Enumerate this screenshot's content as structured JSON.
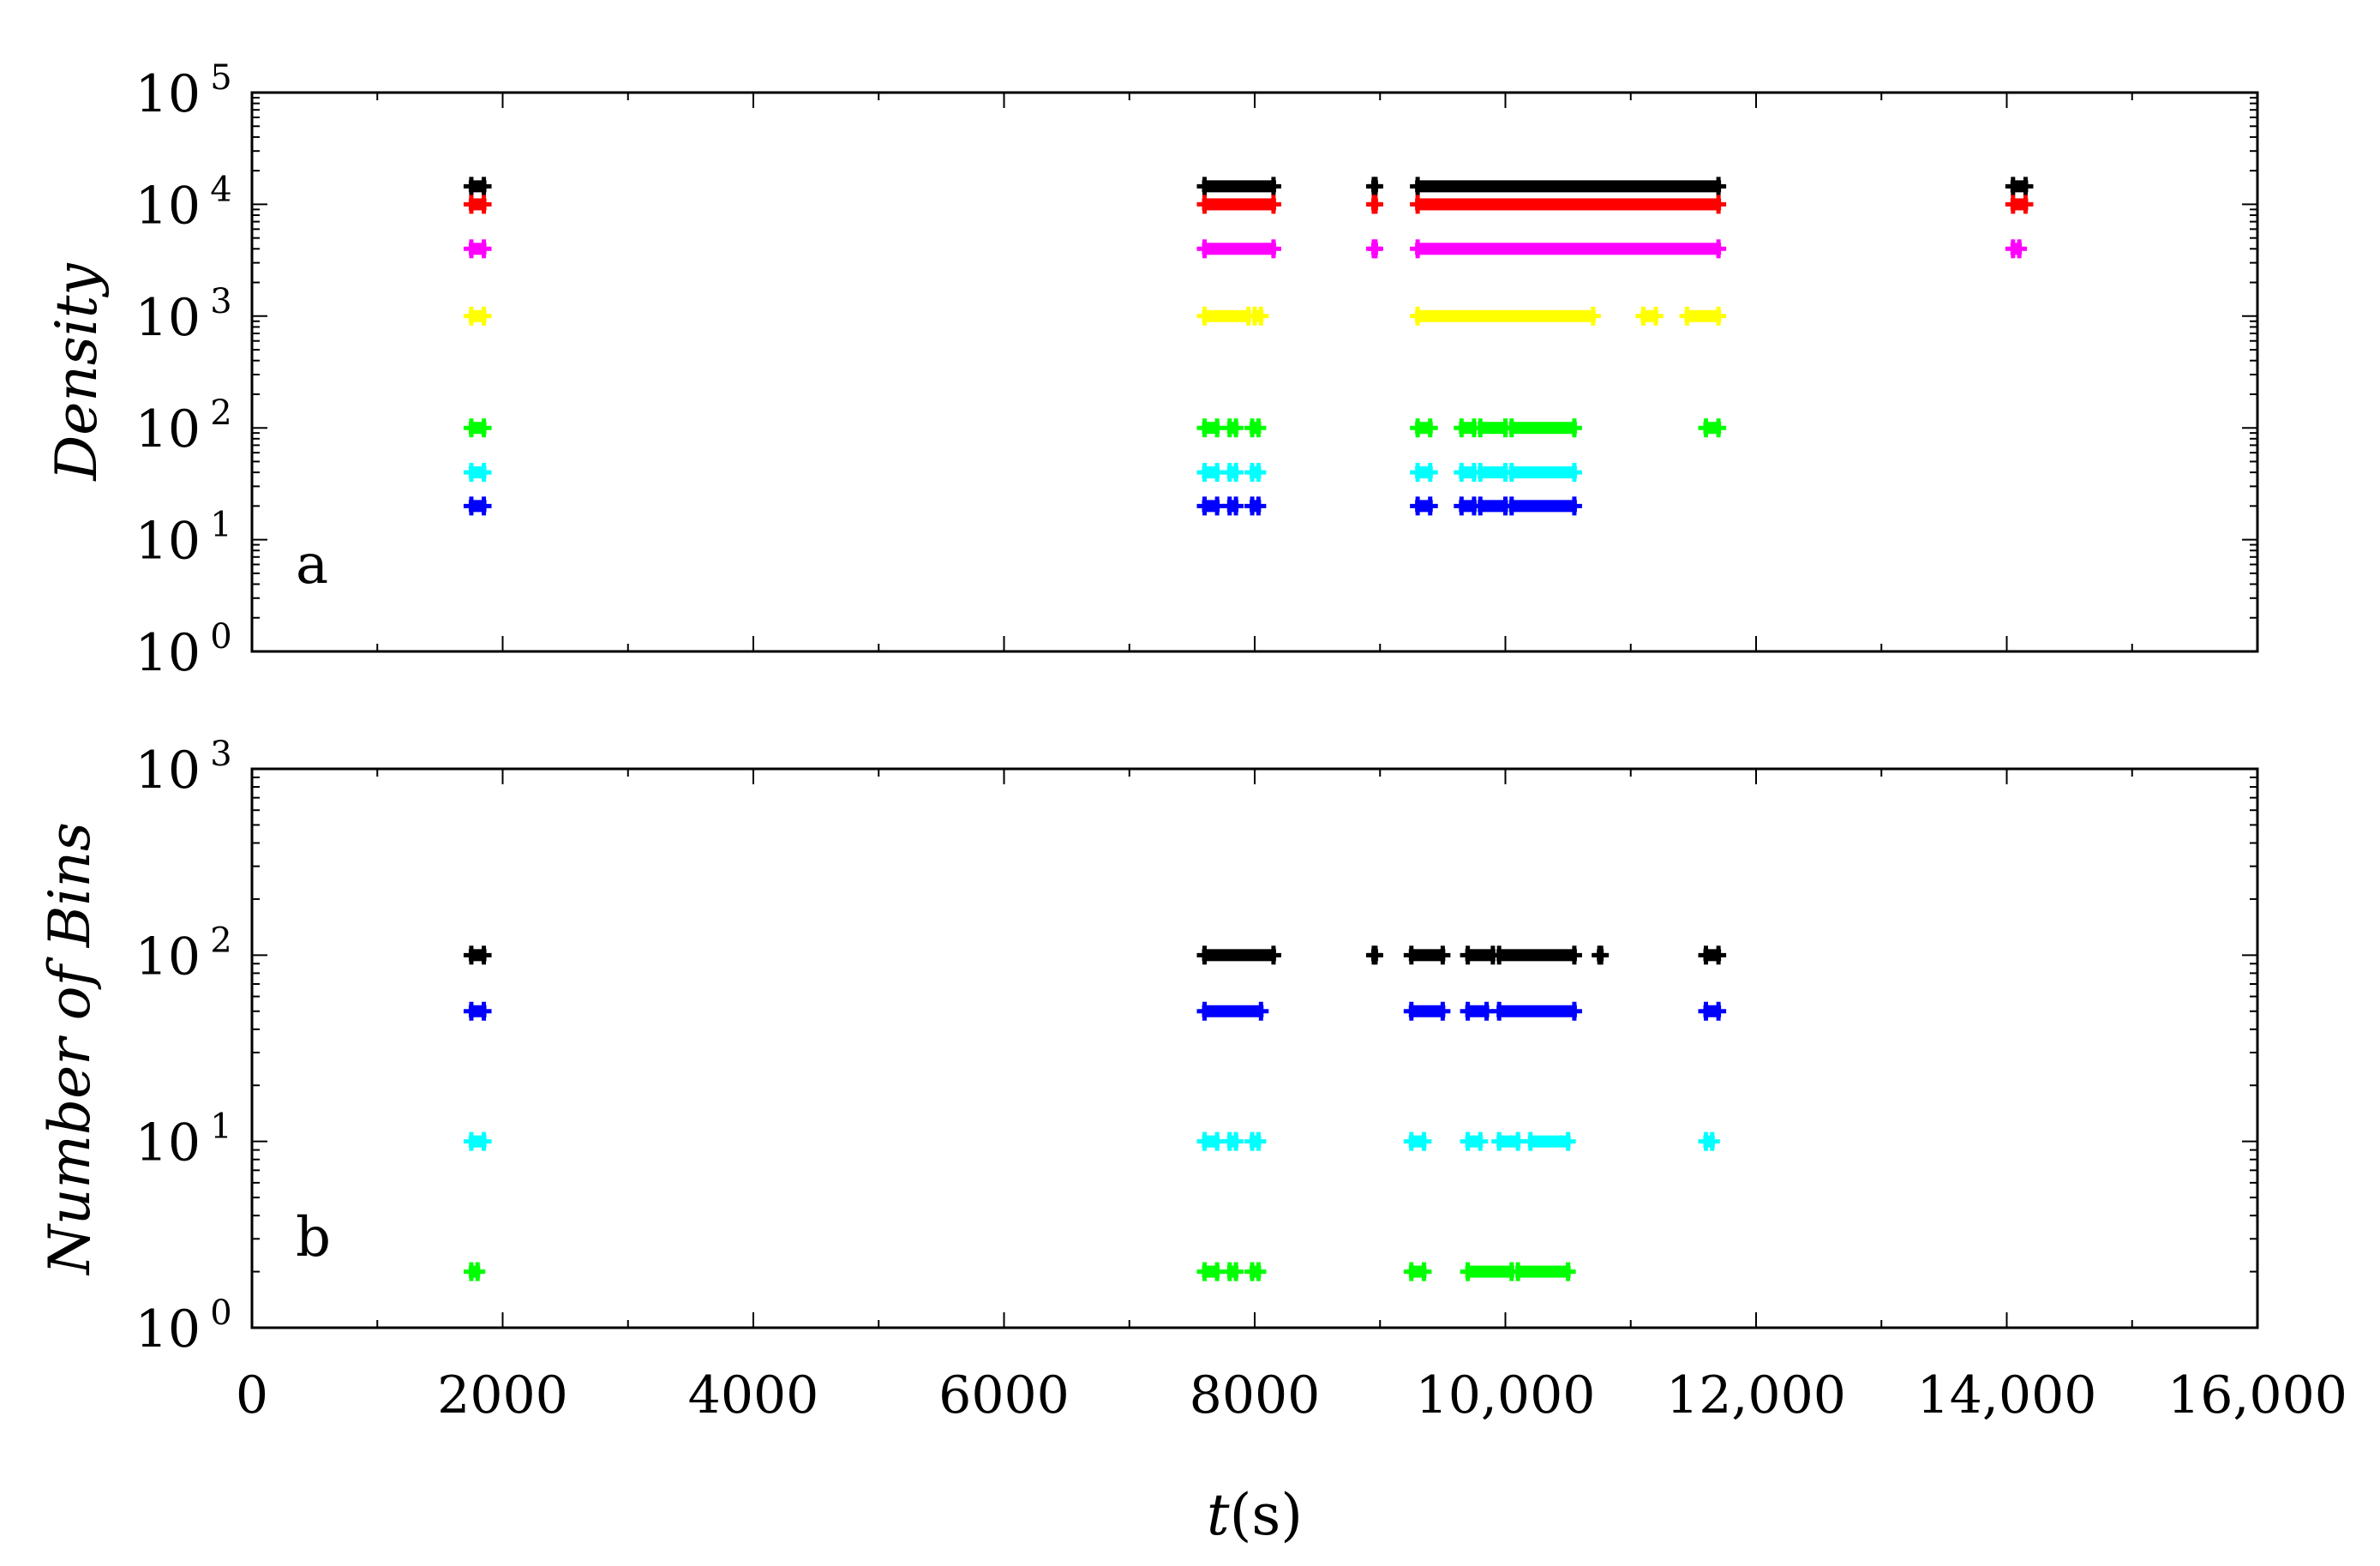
{
  "colors": {
    "black": "#000000",
    "red": "#ff0000",
    "magenta": "#ff00ff",
    "yellow": "#ffff00",
    "green": "#00ff00",
    "cyan": "#00ffff",
    "blue": "#0000ff"
  },
  "x_axis": {
    "label_italic": "t",
    "label_rest": "(s)",
    "range": [
      0,
      16000
    ],
    "ticks": [
      0,
      2000,
      4000,
      6000,
      8000,
      10000,
      12000,
      14000,
      16000
    ],
    "tick_labels": [
      "0",
      "2000",
      "4000",
      "6000",
      "8000",
      "10,000",
      "12,000",
      "14,000",
      "16,000"
    ]
  },
  "chart_data": [
    {
      "type": "scatter",
      "panel_label": "a",
      "ylabel": "Density",
      "yscale": "log",
      "ylim": [
        1,
        100000
      ],
      "y_tick_exponents": [
        0,
        1,
        2,
        3,
        4,
        5
      ],
      "y_tick_base": "10",
      "grid": false,
      "series": [
        {
          "color": "black",
          "y": 14500,
          "segments": [
            [
              1750,
              1850
            ],
            [
              7600,
              8150
            ],
            [
              8950,
              8960
            ],
            [
              9300,
              11700
            ],
            [
              14050,
              14150
            ]
          ]
        },
        {
          "color": "red",
          "y": 10000,
          "segments": [
            [
              1750,
              1850
            ],
            [
              7600,
              8150
            ],
            [
              8950,
              8960
            ],
            [
              9300,
              11700
            ],
            [
              14050,
              14150
            ]
          ]
        },
        {
          "color": "magenta",
          "y": 4000,
          "segments": [
            [
              1750,
              1850
            ],
            [
              7600,
              8150
            ],
            [
              8950,
              8960
            ],
            [
              9300,
              11700
            ],
            [
              14050,
              14100
            ]
          ]
        },
        {
          "color": "yellow",
          "y": 1000,
          "segments": [
            [
              1750,
              1850
            ],
            [
              7600,
              7950
            ],
            [
              8000,
              8050
            ],
            [
              9300,
              10700
            ],
            [
              11100,
              11200
            ],
            [
              11450,
              11700
            ]
          ]
        },
        {
          "color": "green",
          "y": 100,
          "segments": [
            [
              1750,
              1850
            ],
            [
              7600,
              7700
            ],
            [
              7800,
              7850
            ],
            [
              7980,
              8030
            ],
            [
              9300,
              9400
            ],
            [
              9650,
              9750
            ],
            [
              9800,
              10000
            ],
            [
              10050,
              10550
            ],
            [
              11600,
              11700
            ]
          ]
        },
        {
          "color": "cyan",
          "y": 40,
          "segments": [
            [
              1750,
              1850
            ],
            [
              7600,
              7700
            ],
            [
              7800,
              7850
            ],
            [
              7980,
              8030
            ],
            [
              9300,
              9400
            ],
            [
              9650,
              9750
            ],
            [
              9800,
              10000
            ],
            [
              10050,
              10550
            ]
          ]
        },
        {
          "color": "blue",
          "y": 20,
          "segments": [
            [
              1750,
              1850
            ],
            [
              7600,
              7700
            ],
            [
              7800,
              7850
            ],
            [
              7980,
              8030
            ],
            [
              9300,
              9400
            ],
            [
              9650,
              9750
            ],
            [
              9800,
              10000
            ],
            [
              10050,
              10550
            ]
          ]
        }
      ]
    },
    {
      "type": "scatter",
      "panel_label": "b",
      "ylabel": "Number of Bins",
      "yscale": "log",
      "ylim": [
        1,
        1000
      ],
      "y_tick_exponents": [
        0,
        1,
        2,
        3
      ],
      "y_tick_base": "10",
      "grid": false,
      "series": [
        {
          "color": "black",
          "y": 100,
          "segments": [
            [
              1750,
              1850
            ],
            [
              7600,
              8150
            ],
            [
              8950,
              8960
            ],
            [
              9250,
              9500
            ],
            [
              9700,
              9900
            ],
            [
              9950,
              10550
            ],
            [
              10750,
              10760
            ],
            [
              11600,
              11700
            ]
          ]
        },
        {
          "color": "blue",
          "y": 50,
          "segments": [
            [
              1750,
              1850
            ],
            [
              7600,
              8050
            ],
            [
              9250,
              9500
            ],
            [
              9700,
              9850
            ],
            [
              9950,
              10550
            ],
            [
              11600,
              11700
            ]
          ]
        },
        {
          "color": "cyan",
          "y": 10,
          "segments": [
            [
              1750,
              1850
            ],
            [
              7600,
              7700
            ],
            [
              7800,
              7850
            ],
            [
              7980,
              8030
            ],
            [
              9250,
              9350
            ],
            [
              9700,
              9800
            ],
            [
              9950,
              10100
            ],
            [
              10200,
              10500
            ],
            [
              11600,
              11650
            ]
          ]
        },
        {
          "color": "green",
          "y": 2,
          "segments": [
            [
              1750,
              1800
            ],
            [
              7600,
              7700
            ],
            [
              7800,
              7850
            ],
            [
              7980,
              8030
            ],
            [
              9250,
              9350
            ],
            [
              9700,
              10050
            ],
            [
              10100,
              10500
            ]
          ]
        }
      ]
    }
  ]
}
